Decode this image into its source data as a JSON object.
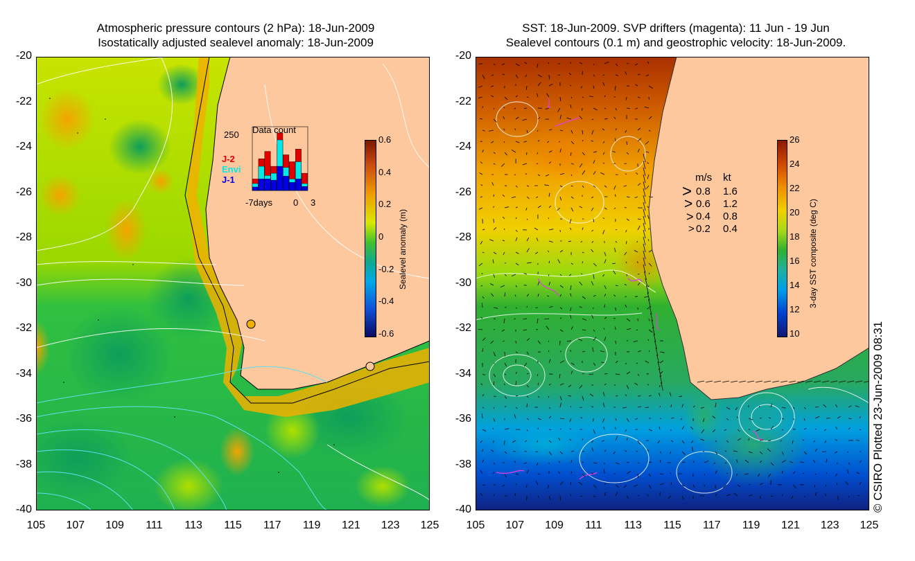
{
  "left_panel": {
    "title_line1": "Atmospheric pressure contours (2 hPa): 18-Jun-2009",
    "title_line2": "Isostatically adjusted sealevel anomaly: 18-Jun-2009",
    "colorbar_label": "Sealevel anomaly (m)",
    "colorbar_ticks": [
      "0.6",
      "0.4",
      "0.2",
      "0",
      "-0.2",
      "-0.4",
      "-0.6"
    ],
    "inset": {
      "max_label": "250",
      "title": "Data count",
      "legend": [
        {
          "label": "J-2",
          "color": "#e00000"
        },
        {
          "label": "Envi",
          "color": "#00e8e8"
        },
        {
          "label": "J-1",
          "color": "#0000e0"
        }
      ],
      "x_labels": [
        "-7days",
        "0",
        "3"
      ],
      "bars_total": [
        0.2,
        0.55,
        0.68,
        0.42,
        1.0,
        0.62,
        0.5,
        0.72,
        0.3
      ],
      "bars_envi": [
        0.12,
        0.42,
        0.26,
        0.3,
        0.88,
        0.4,
        0.2,
        0.5,
        0.12
      ],
      "bars_j1": [
        0.06,
        0.2,
        0.2,
        0.18,
        0.42,
        0.25,
        0.14,
        0.2,
        0.07
      ]
    },
    "colors": {
      "high": "#8a1a00",
      "mid": "#d8e800",
      "zero": "#18b838",
      "low": "#0a0a60",
      "land": "#fdc89e"
    }
  },
  "right_panel": {
    "title_line1": "SST: 18-Jun-2009. SVP drifters (magenta): 11 Jun - 19 Jun",
    "title_line2": "Sealevel contours (0.1 m) and geostrophic velocity: 18-Jun-2009.",
    "colorbar_label": "3-day SST composite (deg C)",
    "colorbar_ticks": [
      "26",
      "24",
      "22",
      "20",
      "18",
      "16",
      "14",
      "12",
      "10"
    ],
    "velocity_legend": {
      "header_ms": "m/s",
      "header_kt": "kt",
      "rows": [
        {
          "ms": "0.8",
          "kt": "1.6"
        },
        {
          "ms": "0.6",
          "kt": "1.2"
        },
        {
          "ms": "0.4",
          "kt": "0.8"
        },
        {
          "ms": "0.2",
          "kt": "0.4"
        }
      ]
    },
    "colors": {
      "warm": "#a02800",
      "mid": "#f0c800",
      "cool": "#28b428",
      "cold": "#0030d0",
      "land": "#fdc89e",
      "drifter": "#e040e0"
    }
  },
  "axes": {
    "y_labels": [
      "-20",
      "-22",
      "-24",
      "-26",
      "-28",
      "-30",
      "-32",
      "-34",
      "-36",
      "-38",
      "-40"
    ],
    "x_labels": [
      "105",
      "107",
      "109",
      "111",
      "113",
      "115",
      "117",
      "119",
      "121",
      "123",
      "125"
    ]
  },
  "credit": "© CSIRO Plotted 23-Jun-2009 08:31"
}
